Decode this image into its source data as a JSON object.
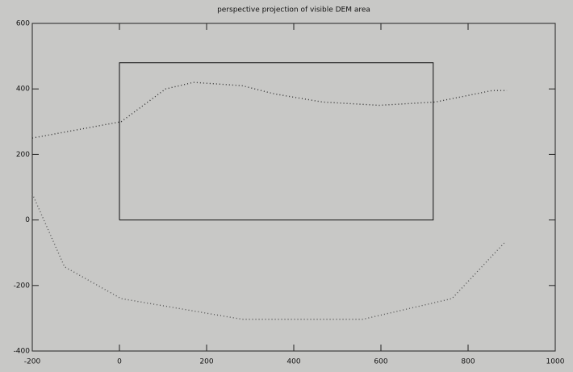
{
  "chart_data": {
    "type": "line",
    "title": "perspective projection of visible DEM area",
    "xlim": [
      -200,
      1000
    ],
    "xticks": [
      -200,
      0,
      200,
      400,
      600,
      800,
      1000
    ],
    "ylim": [
      -400,
      600
    ],
    "yticks": [
      -400,
      -200,
      0,
      200,
      400,
      600
    ],
    "series": [
      {
        "color": "#111111",
        "style": "solid",
        "x": [
          0,
          720,
          720,
          0,
          0
        ],
        "values": [
          0,
          0,
          480,
          480,
          0
        ]
      },
      {
        "color": "#333333",
        "style": "dotted",
        "x": [
          -200,
          4,
          106,
          170,
          281,
          355,
          466,
          596,
          725,
          855,
          889
        ],
        "values": [
          250,
          300,
          400,
          420,
          410,
          385,
          360,
          350,
          360,
          395,
          395
        ]
      },
      {
        "color": "#555555",
        "style": "dotted",
        "x": [
          -200,
          -126,
          4,
          281,
          559,
          763,
          883
        ],
        "values": [
          80,
          -143,
          -240,
          -303,
          -303,
          -240,
          -70
        ]
      }
    ]
  }
}
